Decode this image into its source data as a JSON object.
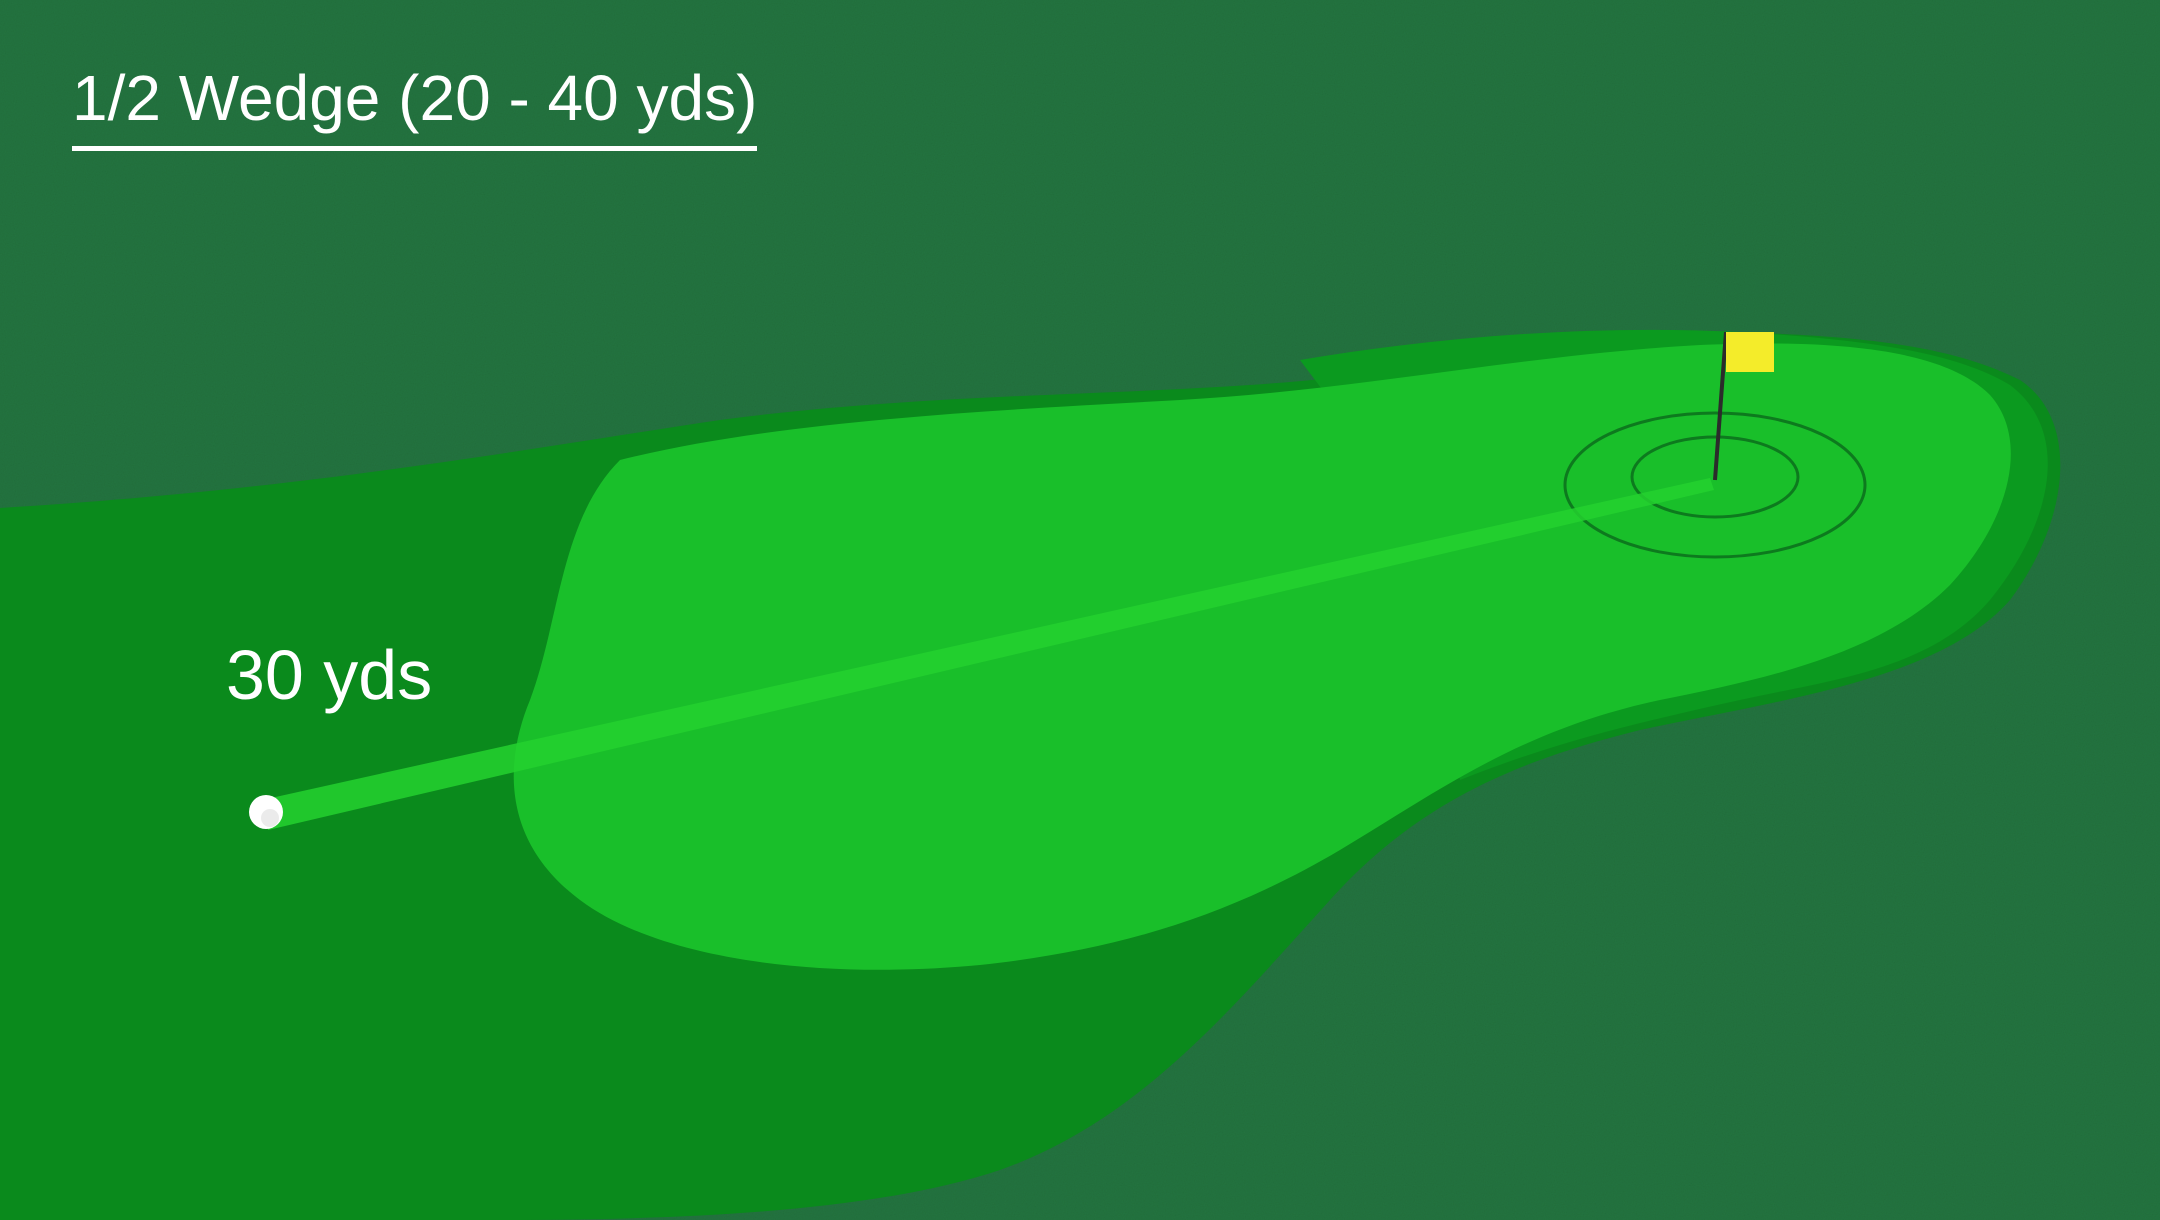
{
  "title": "1/2 Wedge (20 - 40 yds)",
  "distance_label": "30 yds",
  "colors": {
    "rough": "#1f6f3c",
    "fairway": "#0a8a1c",
    "green_fringe": "#0b9a1f",
    "green": "#19bf2a",
    "shot_line": "#24d12f",
    "flag": "#f4ec2a",
    "ball": "#ffffff"
  },
  "icons": {
    "flag": "pin-flag-icon",
    "ball": "golf-ball-icon",
    "target": "target-rings-icon"
  }
}
